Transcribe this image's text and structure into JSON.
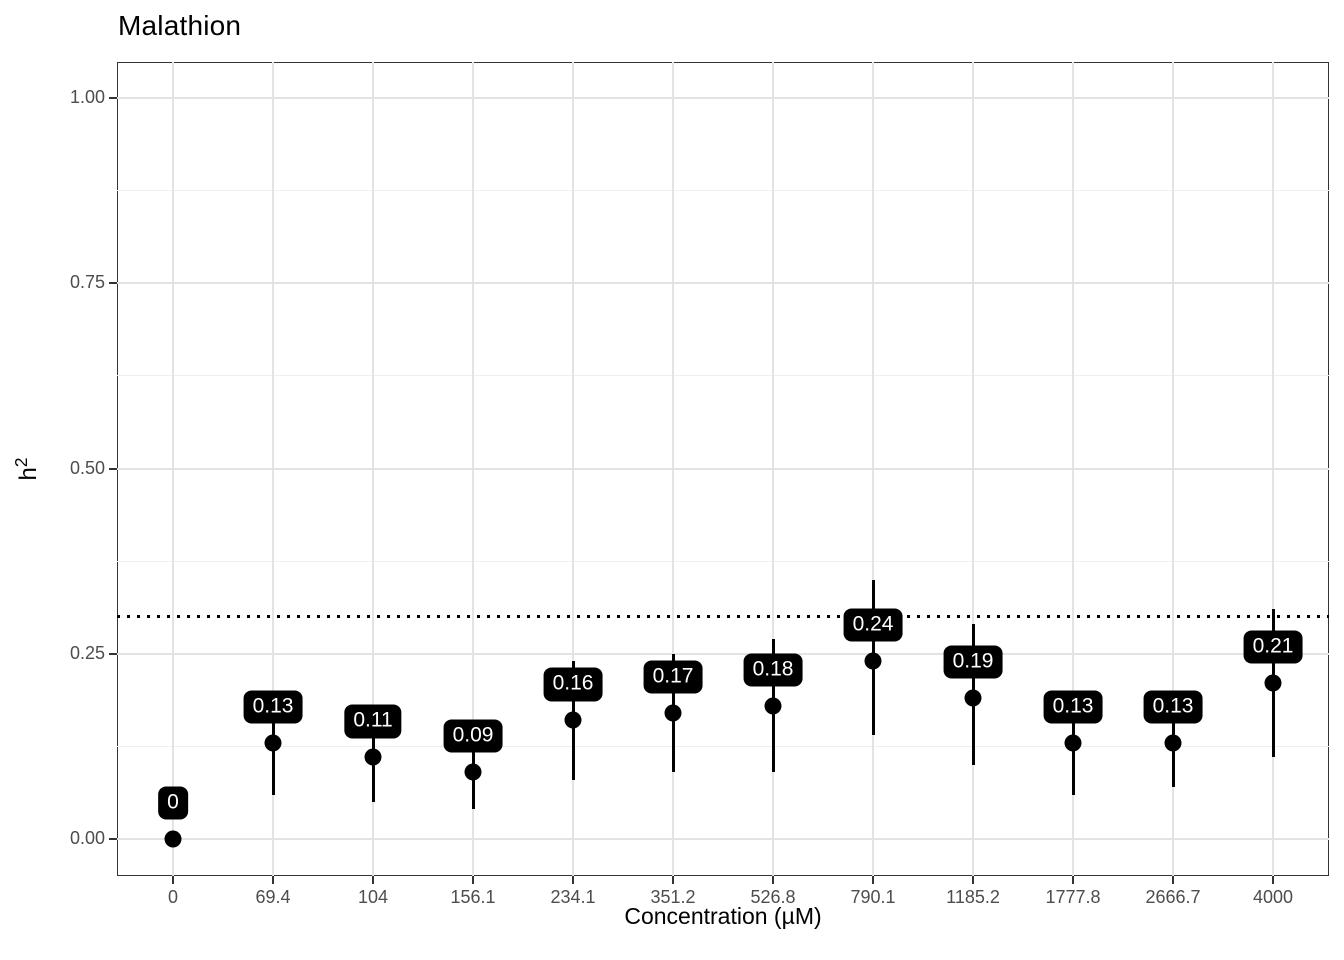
{
  "title": "Malathion",
  "axes": {
    "x_title": "Concentration (µM)",
    "y_title_base": "h",
    "y_title_exponent": "2"
  },
  "chart_data": {
    "type": "scatter",
    "title": "Malathion",
    "xlabel": "Concentration (µM)",
    "ylabel": "h^2",
    "x_categories": [
      "0",
      "69.4",
      "104",
      "156.1",
      "234.1",
      "351.2",
      "526.8",
      "790.1",
      "1185.2",
      "1777.8",
      "2666.7",
      "4000"
    ],
    "y_ticks": [
      {
        "value": 0.0,
        "label": "0.00"
      },
      {
        "value": 0.25,
        "label": "0.25"
      },
      {
        "value": 0.5,
        "label": "0.50"
      },
      {
        "value": 0.75,
        "label": "0.75"
      },
      {
        "value": 1.0,
        "label": "1.00"
      }
    ],
    "ylim": [
      -0.05,
      1.05
    ],
    "grid": {
      "major_y": [
        0.0,
        0.25,
        0.5,
        0.75,
        1.0
      ],
      "minor_y": [
        0.125,
        0.375,
        0.625,
        0.875
      ],
      "vertical_at_each_category": true
    },
    "reference_line": {
      "y": 0.3,
      "style": "dotted"
    },
    "legend": "none",
    "points": [
      {
        "category": "0",
        "value": 0.0,
        "label": "0",
        "ci_low": 0.0,
        "ci_high": 0.0
      },
      {
        "category": "69.4",
        "value": 0.13,
        "label": "0.13",
        "ci_low": 0.06,
        "ci_high": 0.2
      },
      {
        "category": "104",
        "value": 0.11,
        "label": "0.11",
        "ci_low": 0.05,
        "ci_high": 0.17
      },
      {
        "category": "156.1",
        "value": 0.09,
        "label": "0.09",
        "ci_low": 0.04,
        "ci_high": 0.15
      },
      {
        "category": "234.1",
        "value": 0.16,
        "label": "0.16",
        "ci_low": 0.08,
        "ci_high": 0.24
      },
      {
        "category": "351.2",
        "value": 0.17,
        "label": "0.17",
        "ci_low": 0.09,
        "ci_high": 0.25
      },
      {
        "category": "526.8",
        "value": 0.18,
        "label": "0.18",
        "ci_low": 0.09,
        "ci_high": 0.27
      },
      {
        "category": "790.1",
        "value": 0.24,
        "label": "0.24",
        "ci_low": 0.14,
        "ci_high": 0.35
      },
      {
        "category": "1185.2",
        "value": 0.19,
        "label": "0.19",
        "ci_low": 0.1,
        "ci_high": 0.29
      },
      {
        "category": "1777.8",
        "value": 0.13,
        "label": "0.13",
        "ci_low": 0.06,
        "ci_high": 0.2
      },
      {
        "category": "2666.7",
        "value": 0.13,
        "label": "0.13",
        "ci_low": 0.07,
        "ci_high": 0.2
      },
      {
        "category": "4000",
        "value": 0.21,
        "label": "0.21",
        "ci_low": 0.11,
        "ci_high": 0.31
      }
    ]
  },
  "colors": {
    "point": "#000000",
    "error_bar": "#000000",
    "label_bg": "#000000",
    "label_text": "#ffffff",
    "grid_major": "#e3e3e3",
    "grid_minor": "#efefef",
    "panel_border": "#333333",
    "axis_text": "#4d4d4d",
    "title_text": "#000000",
    "reference_line": "#000000",
    "background": "#ffffff"
  }
}
